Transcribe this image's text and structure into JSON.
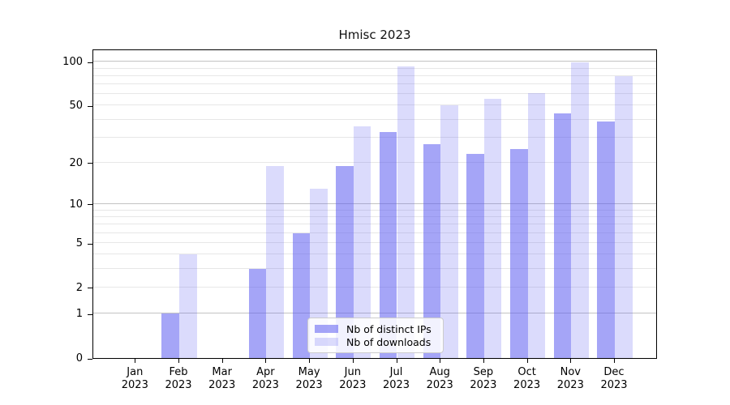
{
  "title": "Hmisc 2023",
  "colors": {
    "bar_base": "#5b5bf0",
    "distinct_ips_bar": "rgba(91,91,240,0.55)",
    "downloads_bar": "rgba(91,91,240,0.22)",
    "distinct_ips_solid": "#a5a5f5",
    "downloads_solid": "#dcdcfa",
    "grid_major": "#c3c3c3",
    "grid_minor": "#e7e7e7",
    "axis": "#000000",
    "legend_border": "#cccccc"
  },
  "chart_data": {
    "type": "bar",
    "scale": "log1p",
    "title": "Hmisc 2023",
    "categories": [
      "Jan 2023",
      "Feb 2023",
      "Mar 2023",
      "Apr 2023",
      "May 2023",
      "Jun 2023",
      "Jul 2023",
      "Aug 2023",
      "Sep 2023",
      "Oct 2023",
      "Nov 2023",
      "Dec 2023"
    ],
    "series": [
      {
        "name": "Nb of distinct IPs",
        "values": [
          0,
          1,
          0,
          3,
          6,
          19,
          33,
          27,
          23,
          25,
          44,
          39
        ]
      },
      {
        "name": "Nb of downloads",
        "values": [
          0,
          4,
          0,
          19,
          13,
          36,
          93,
          50,
          56,
          61,
          99,
          80
        ]
      }
    ],
    "y_tick_values": [
      0,
      1,
      2,
      5,
      10,
      20,
      50,
      100
    ],
    "grid_major_values": [
      1,
      10,
      100
    ],
    "grid_minor_values": [
      2,
      3,
      4,
      5,
      6,
      7,
      8,
      9,
      20,
      30,
      40,
      50,
      60,
      70,
      80,
      90
    ],
    "ylim": [
      0,
      123
    ],
    "xlabel": "",
    "ylabel": "",
    "grid": true,
    "legend_position": "inside-bottom-center"
  }
}
